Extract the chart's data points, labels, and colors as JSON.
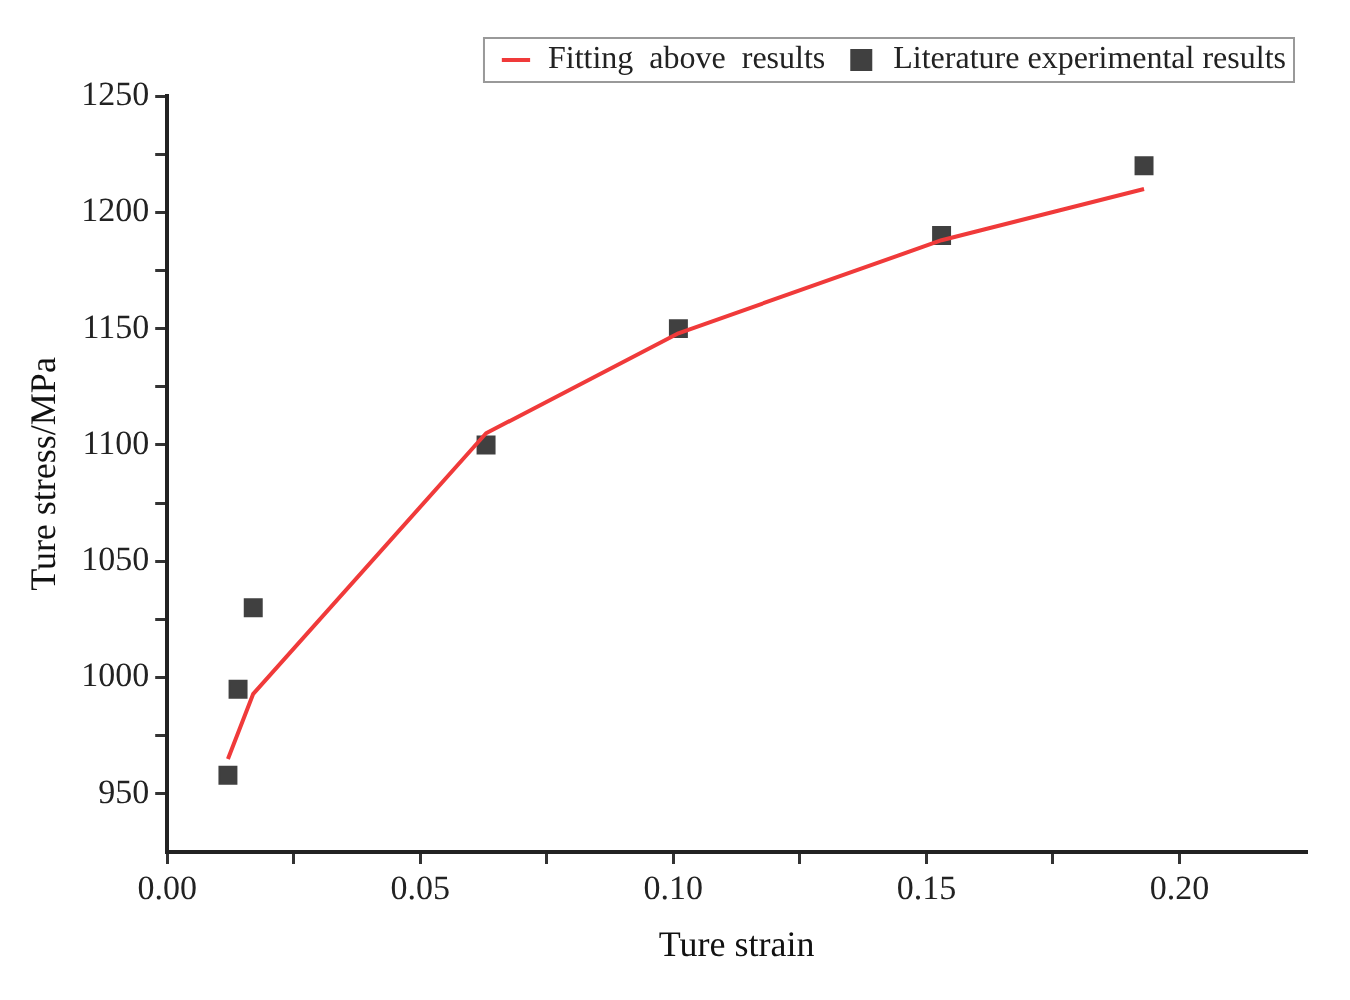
{
  "chart_data": {
    "type": "scatter",
    "xlabel": "Ture strain",
    "ylabel": "Ture stress/MPa",
    "xlim": [
      0,
      0.225
    ],
    "ylim": [
      925,
      1250
    ],
    "xticks": [
      {
        "value": 0,
        "label": "0.00"
      },
      {
        "value": 0.025,
        "label": null
      },
      {
        "value": 0.05,
        "label": "0.05"
      },
      {
        "value": 0.075,
        "label": null
      },
      {
        "value": 0.1,
        "label": "0.10"
      },
      {
        "value": 0.125,
        "label": null
      },
      {
        "value": 0.15,
        "label": "0.15"
      },
      {
        "value": 0.175,
        "label": null
      },
      {
        "value": 0.2,
        "label": "0.20"
      }
    ],
    "yticks": [
      950,
      {
        "value": 975,
        "label": null
      },
      1000,
      {
        "value": 1025,
        "label": null
      },
      1050,
      {
        "value": 1075,
        "label": null
      },
      1100,
      {
        "value": 1125,
        "label": null
      },
      1150,
      {
        "value": 1175,
        "label": null
      },
      1200,
      {
        "value": 1225,
        "label": null
      },
      1250
    ],
    "grid": false,
    "legend": "top right",
    "series": [
      {
        "name": "Literature experimental results",
        "marker": "square",
        "color": "#404040",
        "x": [
          0.012,
          0.014,
          0.017,
          0.063,
          0.101,
          0.153,
          0.193
        ],
        "values": [
          958,
          995,
          1030,
          1100,
          1150,
          1190,
          1220
        ]
      },
      {
        "name": "Fitting  above  results",
        "type": "line",
        "marker": "none",
        "line_style": "solid",
        "color": "#f03a3a",
        "x": [
          0.012,
          0.017,
          0.063,
          0.101,
          0.153,
          0.193
        ],
        "values": [
          965,
          993,
          1105,
          1148,
          1188,
          1210
        ]
      }
    ]
  }
}
